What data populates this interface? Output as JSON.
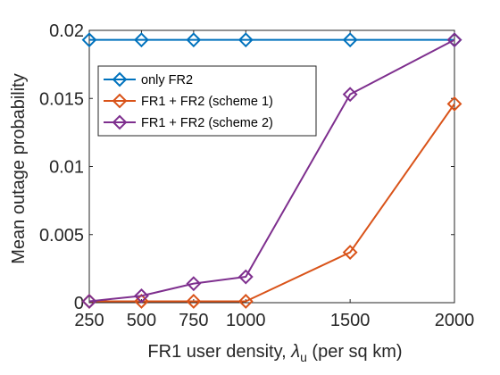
{
  "chart_data": {
    "type": "line",
    "title": "",
    "xlabel": "FR1 user density, ",
    "xlabel_symbol": "λ",
    "xlabel_subscript": "u",
    "xlabel_suffix": " (per sq km)",
    "ylabel": "Mean outage probability",
    "x": [
      250,
      500,
      750,
      1000,
      1500,
      2000
    ],
    "xticks": [
      "250",
      "500",
      "750",
      "1000",
      "1500",
      "2000"
    ],
    "yticks": [
      {
        "value": 0,
        "label": "0"
      },
      {
        "value": 0.005,
        "label": "0.005"
      },
      {
        "value": 0.01,
        "label": "0.01"
      },
      {
        "value": 0.015,
        "label": "0.015"
      },
      {
        "value": 0.02,
        "label": "0.02"
      }
    ],
    "xlim": [
      250,
      2000
    ],
    "ylim": [
      0,
      0.02
    ],
    "grid": false,
    "legend_position": "upper-left",
    "series": [
      {
        "name": "only FR2",
        "color": "#0072BD",
        "marker": "diamond",
        "values": [
          0.0193,
          0.0193,
          0.0193,
          0.0193,
          0.0193,
          0.0193
        ]
      },
      {
        "name": "FR1 + FR2 (scheme 1)",
        "color": "#D95319",
        "marker": "diamond",
        "values": [
          0.0001,
          0.0001,
          0.0001,
          0.0001,
          0.0037,
          0.0146
        ]
      },
      {
        "name": "FR1 + FR2 (scheme 2)",
        "color": "#7E2F8E",
        "marker": "diamond",
        "values": [
          0.0001,
          0.0005,
          0.0014,
          0.0019,
          0.0153,
          0.0193
        ]
      }
    ]
  }
}
